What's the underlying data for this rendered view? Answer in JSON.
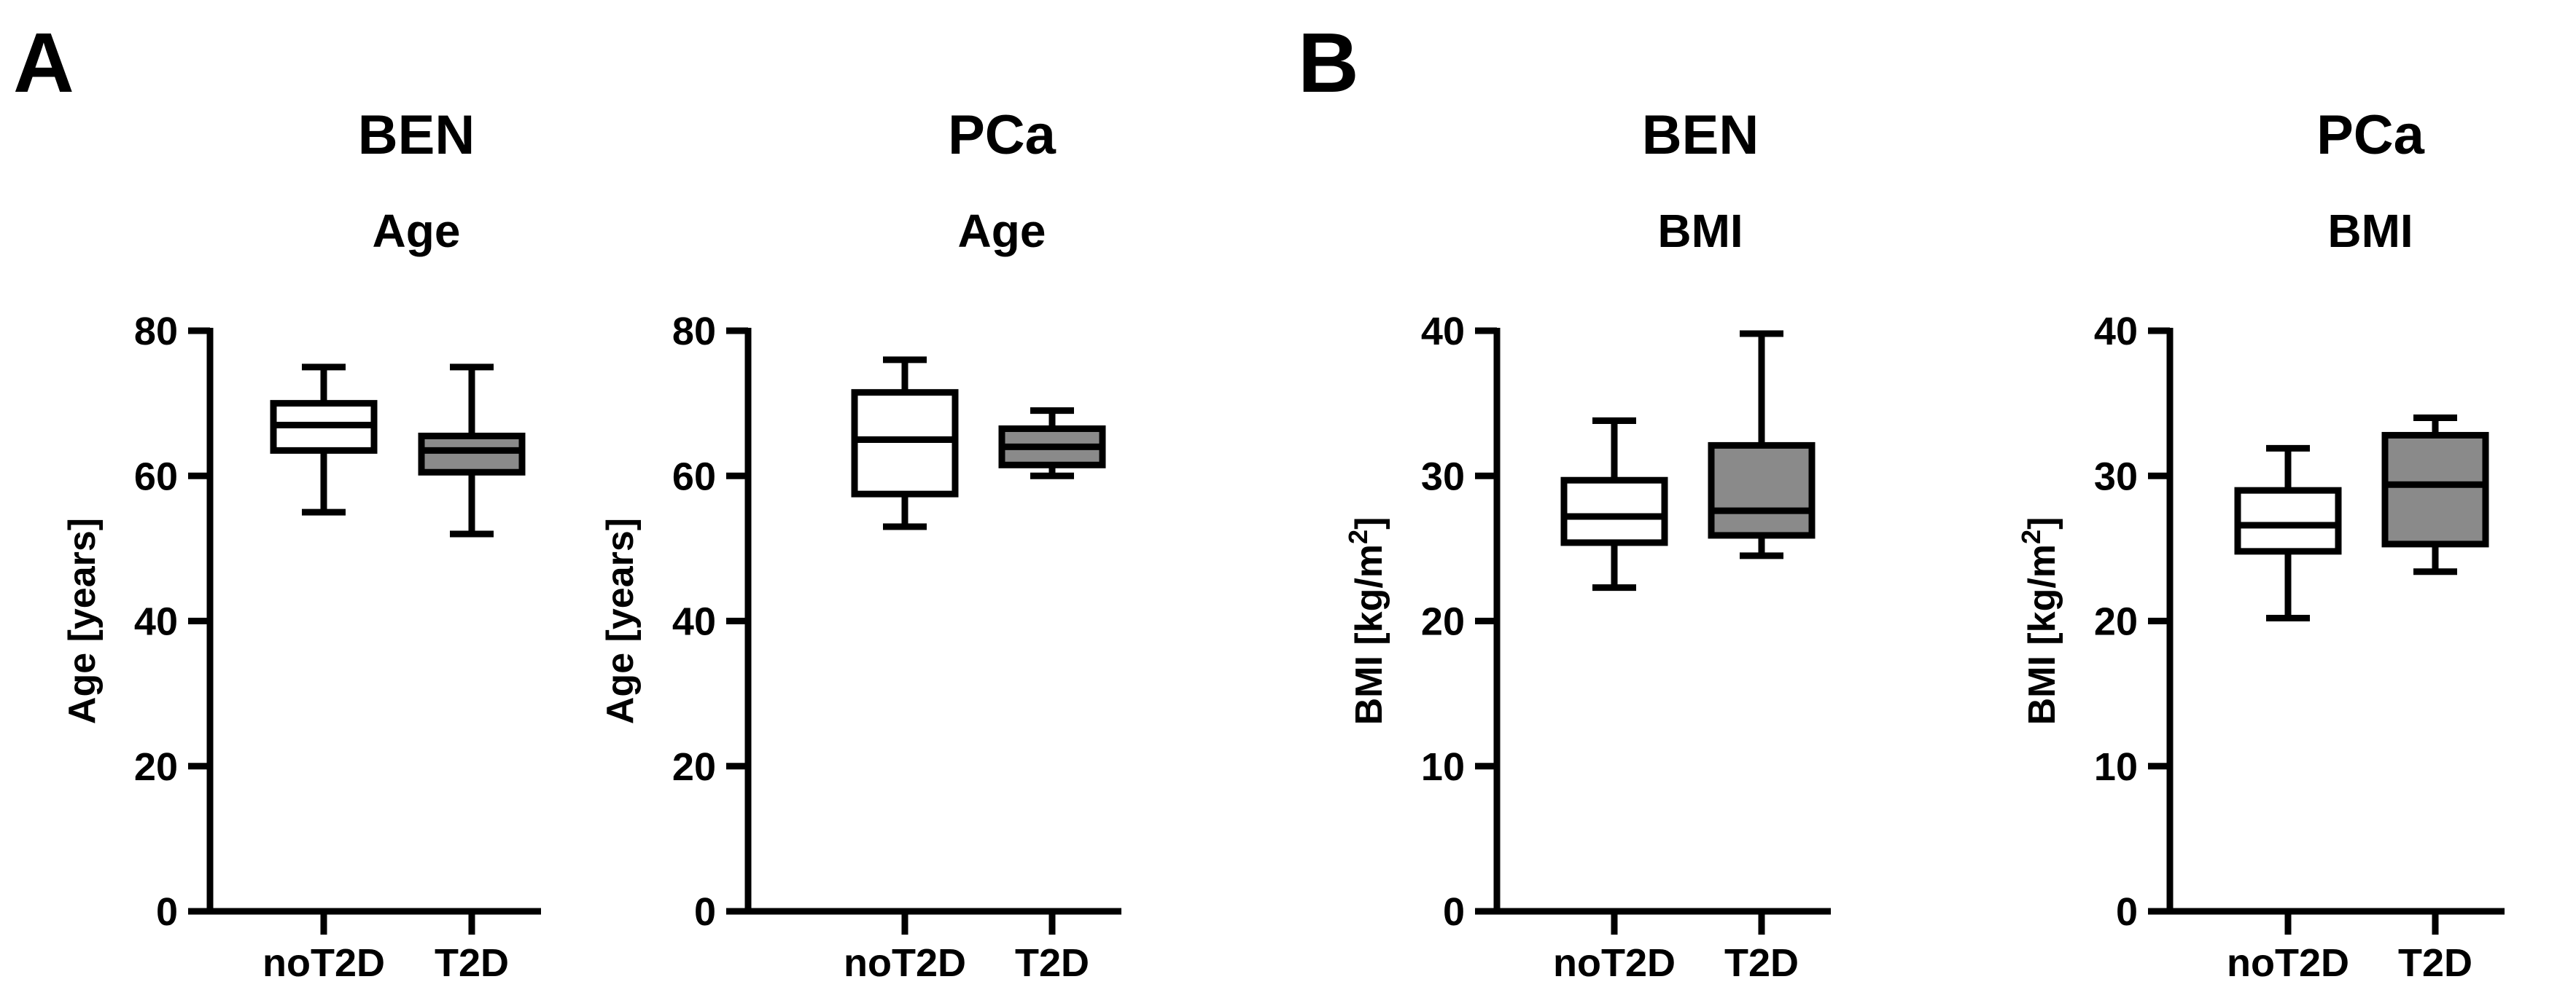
{
  "panel_letters": [
    "A",
    "B"
  ],
  "colors": {
    "nonT2D_fill": "#ffffff",
    "T2D_fill": "#8a8a8a",
    "ink": "#000000"
  },
  "chart_data": [
    {
      "type": "box",
      "panel": "A",
      "title": "BEN",
      "subtitle": "Age",
      "ylabel": "Age [years]",
      "ylim": [
        0,
        80
      ],
      "yticks": [
        0,
        20,
        40,
        60,
        80
      ],
      "categories": [
        "noT2D",
        "T2D"
      ],
      "boxes": [
        {
          "category": "noT2D",
          "min": 55,
          "q1": 63.5,
          "median": 67,
          "q3": 70,
          "max": 75
        },
        {
          "category": "T2D",
          "min": 52,
          "q1": 60.5,
          "median": 63.5,
          "q3": 65.5,
          "max": 75
        }
      ]
    },
    {
      "type": "box",
      "panel": "A",
      "title": "PCa",
      "subtitle": "Age",
      "ylabel": "Age [years]",
      "ylim": [
        0,
        80
      ],
      "yticks": [
        0,
        20,
        40,
        60,
        80
      ],
      "categories": [
        "noT2D",
        "T2D"
      ],
      "boxes": [
        {
          "category": "noT2D",
          "min": 53,
          "q1": 57.5,
          "median": 65,
          "q3": 71.5,
          "max": 76
        },
        {
          "category": "T2D",
          "min": 60,
          "q1": 61.5,
          "median": 64,
          "q3": 66.5,
          "max": 69
        }
      ]
    },
    {
      "type": "box",
      "panel": "B",
      "title": "BEN",
      "subtitle": "BMI",
      "ylabel": "BMI [kg/m",
      "ylabel_sup": "2",
      "ylabel_end": "]",
      "ylim": [
        0,
        40
      ],
      "yticks": [
        0,
        10,
        20,
        30,
        40
      ],
      "categories": [
        "noT2D",
        "T2D"
      ],
      "boxes": [
        {
          "category": "noT2D",
          "min": 22.3,
          "q1": 25.4,
          "median": 27.2,
          "q3": 29.7,
          "max": 33.8
        },
        {
          "category": "T2D",
          "min": 24.5,
          "q1": 25.9,
          "median": 27.6,
          "q3": 32.1,
          "max": 39.8
        }
      ]
    },
    {
      "type": "box",
      "panel": "B",
      "title": "PCa",
      "subtitle": "BMI",
      "ylabel": "BMI [kg/m",
      "ylabel_sup": "2",
      "ylabel_end": "]",
      "ylim": [
        0,
        40
      ],
      "yticks": [
        0,
        10,
        20,
        30,
        40
      ],
      "categories": [
        "noT2D",
        "T2D"
      ],
      "boxes": [
        {
          "category": "noT2D",
          "min": 20.2,
          "q1": 24.8,
          "median": 26.6,
          "q3": 29,
          "max": 31.9
        },
        {
          "category": "T2D",
          "min": 23.4,
          "q1": 25.3,
          "median": 29.4,
          "q3": 32.8,
          "max": 34
        }
      ]
    }
  ]
}
